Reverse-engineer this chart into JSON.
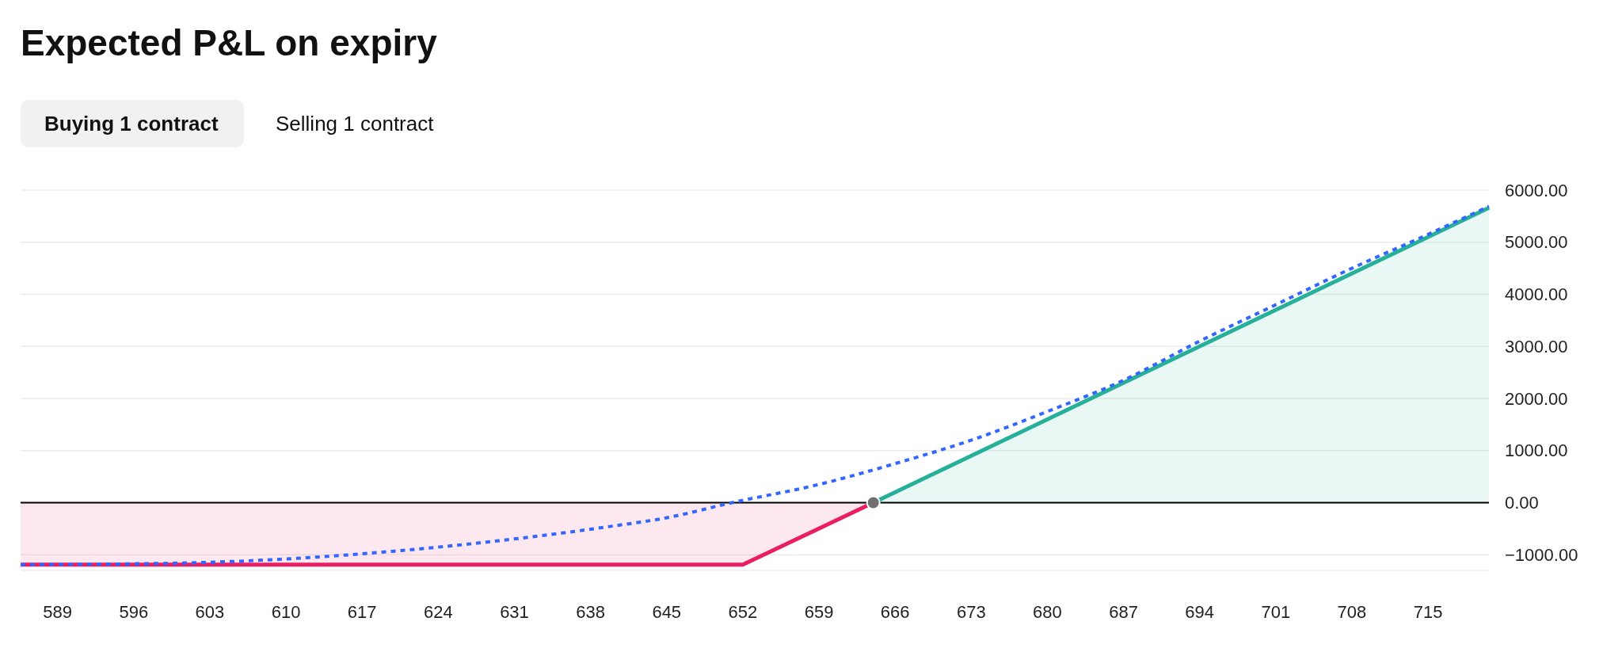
{
  "chart_data": {
    "type": "area",
    "title": "Expected P&L on expiry",
    "annotations": [
      "Buying 1 contract",
      "Selling 1 contract"
    ],
    "xlim": [
      585.6,
      720.6
    ],
    "xticks": [
      589,
      596,
      603,
      610,
      617,
      624,
      631,
      638,
      645,
      652,
      659,
      666,
      673,
      680,
      687,
      694,
      701,
      708,
      715
    ],
    "ylim": [
      -1300,
      6000
    ],
    "yticks": [
      {
        "value": -1000,
        "label": "−1000.00"
      },
      {
        "value": 0,
        "label": "0.00"
      },
      {
        "value": 1000,
        "label": "1000.00"
      },
      {
        "value": 2000,
        "label": "2000.00"
      },
      {
        "value": 3000,
        "label": "3000.00"
      },
      {
        "value": 4000,
        "label": "4000.00"
      },
      {
        "value": 5000,
        "label": "5000.00"
      },
      {
        "value": 6000,
        "label": "6000.00"
      }
    ],
    "grid": "y",
    "ref_lines": [
      {
        "axis": "y",
        "value": 0,
        "color": "#000000"
      }
    ],
    "series": [
      {
        "color": "#e91e63",
        "x": [
          585.6,
          652,
          664
        ],
        "values": [
          -1190,
          -1190,
          0
        ]
      },
      {
        "color": "#26b09a",
        "x": [
          664,
          720.6
        ],
        "values": [
          0,
          5660
        ]
      },
      {
        "type": "line",
        "color": "#3366ff",
        "line_style": "dotted",
        "x": [
          585.6,
          600,
          610,
          620,
          630,
          640,
          645,
          651,
          659,
          666,
          673,
          680,
          687,
          694,
          701,
          708,
          715,
          720.6
        ],
        "values": [
          -1190,
          -1160,
          -1080,
          -930,
          -720,
          -450,
          -290,
          0,
          350,
          750,
          1200,
          1750,
          2350,
          3100,
          3800,
          4500,
          5150,
          5690
        ]
      },
      {
        "type": "scatter",
        "color": "#707070",
        "marker": "circle",
        "x": [
          664
        ],
        "values": [
          0
        ]
      }
    ]
  }
}
